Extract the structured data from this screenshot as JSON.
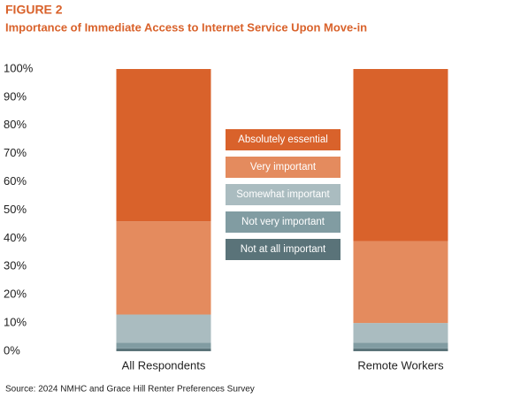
{
  "chart_data": {
    "type": "stacked_bar",
    "title": "FIGURE 2",
    "subtitle": "Importance of Immediate Access to Internet Service Upon Move-in",
    "source": "Source: 2024 NMHC and Grace Hill Renter Preferences Survey",
    "categories": [
      "All Respondents",
      "Remote Workers"
    ],
    "series": [
      {
        "name": "Not at all important",
        "color": "#5a7379",
        "values": [
          1,
          1
        ]
      },
      {
        "name": "Not very important",
        "color": "#819ca2",
        "values": [
          2,
          2
        ]
      },
      {
        "name": "Somewhat important",
        "color": "#aabcc0",
        "values": [
          10,
          7
        ]
      },
      {
        "name": "Very important",
        "color": "#e48b5e",
        "values": [
          33,
          29
        ]
      },
      {
        "name": "Absolutely essential",
        "color": "#d9622b",
        "values": [
          54,
          61
        ]
      }
    ],
    "ylim": [
      0,
      100
    ],
    "yticks": [
      {
        "value": 0,
        "label": "0%"
      },
      {
        "value": 10,
        "label": "10%"
      },
      {
        "value": 20,
        "label": "20%"
      },
      {
        "value": 30,
        "label": "30%"
      },
      {
        "value": 40,
        "label": "40%"
      },
      {
        "value": 50,
        "label": "50%"
      },
      {
        "value": 60,
        "label": "60%"
      },
      {
        "value": 70,
        "label": "70%"
      },
      {
        "value": 80,
        "label": "80%"
      },
      {
        "value": 90,
        "label": "90%"
      },
      {
        "value": 100,
        "label": "100%"
      }
    ],
    "grid": false
  }
}
